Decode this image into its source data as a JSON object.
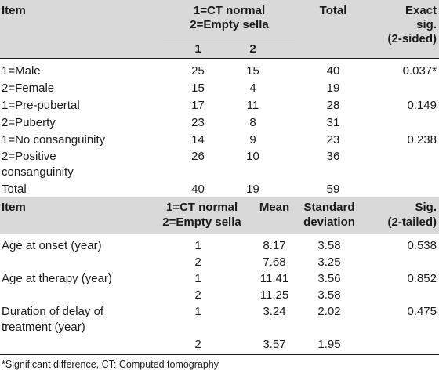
{
  "table1": {
    "header": {
      "item": "Item",
      "group_line1": "1=CT normal",
      "group_line2": "2=Empty sella",
      "col1": "1",
      "col2": "2",
      "total": "Total",
      "exact_line1": "Exact",
      "exact_line2": "sig.",
      "exact_line3": "(2-sided)"
    },
    "rows": [
      {
        "item": "1=Male",
        "v1": "25",
        "v2": "15",
        "total": "40",
        "sig": "0.037*"
      },
      {
        "item": "2=Female",
        "v1": "15",
        "v2": "4",
        "total": "19",
        "sig": ""
      },
      {
        "item": "1=Pre-pubertal",
        "v1": "17",
        "v2": "11",
        "total": "28",
        "sig": "0.149"
      },
      {
        "item": "2=Puberty",
        "v1": "23",
        "v2": "8",
        "total": "31",
        "sig": ""
      },
      {
        "item": "1=No consanguinity",
        "v1": "14",
        "v2": "9",
        "total": "23",
        "sig": "0.238"
      },
      {
        "item": "2=Positive",
        "v1": "26",
        "v2": "10",
        "total": "36",
        "sig": ""
      },
      {
        "item": "consanguinity",
        "v1": "",
        "v2": "",
        "total": "",
        "sig": ""
      },
      {
        "item": "Total",
        "v1": "40",
        "v2": "19",
        "total": "59",
        "sig": ""
      }
    ]
  },
  "table2": {
    "header": {
      "item": "Item",
      "group_line1": "1=CT normal",
      "group_line2": "2=Empty sella",
      "mean": "Mean",
      "sd_line1": "Standard",
      "sd_line2": "deviation",
      "sig_line1": "Sig.",
      "sig_line2": "(2-tailed)"
    },
    "rows": [
      {
        "item": "Age at onset (year)",
        "group": "1",
        "mean": "8.17",
        "sd": "3.58",
        "sig": "0.538"
      },
      {
        "item": "",
        "group": "2",
        "mean": "7.68",
        "sd": "3.25",
        "sig": ""
      },
      {
        "item": "Age at therapy (year)",
        "group": "1",
        "mean": "11.41",
        "sd": "3.56",
        "sig": "0.852"
      },
      {
        "item": "",
        "group": "2",
        "mean": "11.25",
        "sd": "3.58",
        "sig": ""
      },
      {
        "item": "Duration of delay of",
        "group": "1",
        "mean": "3.24",
        "sd": "2.02",
        "sig": "0.475"
      },
      {
        "item": "treatment (year)",
        "group": "",
        "mean": "",
        "sd": "",
        "sig": ""
      },
      {
        "item": "",
        "group": "2",
        "mean": "3.57",
        "sd": "1.95",
        "sig": ""
      }
    ]
  },
  "footnote": "*Significant difference, CT: Computed tomography"
}
